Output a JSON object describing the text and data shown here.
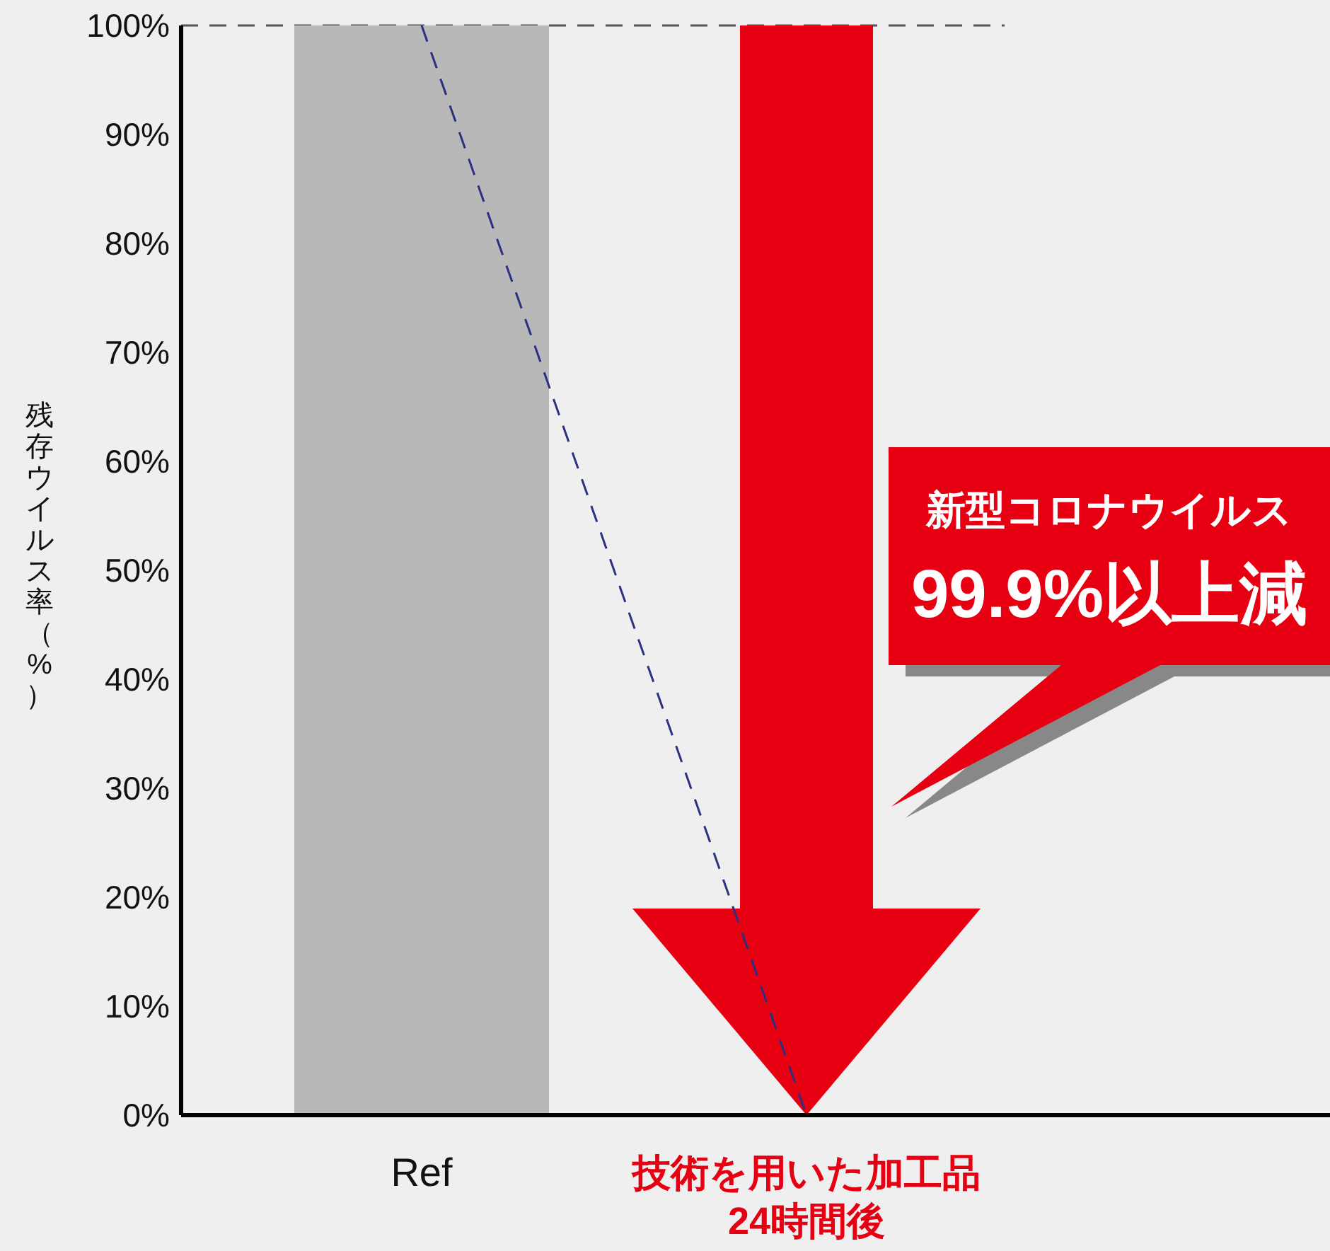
{
  "chart_data": {
    "type": "bar",
    "ylabel": "残存ウイルス率（%）",
    "categories": [
      "Ref",
      "技術を用いた加工品\n24時間後"
    ],
    "series": [
      {
        "color": "#b8b8b8",
        "values": [
          100,
          0
        ]
      },
      {
        "type": "line",
        "color": "#2b3080",
        "values": [
          100,
          0
        ],
        "line_style": "dashed",
        "marker": "none"
      }
    ],
    "ylim": [
      0,
      100
    ],
    "yticks": [
      {
        "value": 0,
        "label": "0%"
      },
      {
        "value": 10,
        "label": "10%"
      },
      {
        "value": 20,
        "label": "20%"
      },
      {
        "value": 30,
        "label": "30%"
      },
      {
        "value": 40,
        "label": "40%"
      },
      {
        "value": 50,
        "label": "50%"
      },
      {
        "value": 60,
        "label": "60%"
      },
      {
        "value": 70,
        "label": "70%"
      },
      {
        "value": 80,
        "label": "80%"
      },
      {
        "value": 90,
        "label": "90%"
      },
      {
        "value": 100,
        "label": "100%"
      }
    ],
    "ref_lines": [
      {
        "axis": "y",
        "value": 100,
        "color": "#555555",
        "line_style": "dashed"
      }
    ],
    "annotations": [
      "新型コロナウイルス\n99.9%以上減"
    ],
    "grid": false
  }
}
